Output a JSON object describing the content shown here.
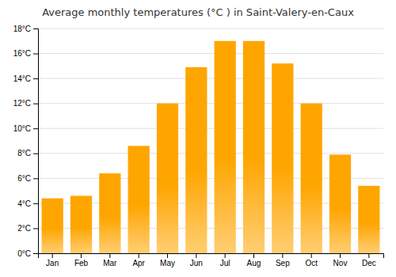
{
  "chart_data": {
    "type": "bar",
    "title": "Average monthly temperatures (°C ) in Saint-Valery-en-Caux",
    "categories": [
      "Jan",
      "Feb",
      "Mar",
      "Apr",
      "May",
      "Jun",
      "Jul",
      "Aug",
      "Sep",
      "Oct",
      "Nov",
      "Dec"
    ],
    "values": [
      4.4,
      4.6,
      6.4,
      8.6,
      12.0,
      14.9,
      17.0,
      17.0,
      15.2,
      12.0,
      7.9,
      5.4
    ],
    "color": "#FFA500",
    "ylim": [
      0,
      18
    ],
    "yticks": [
      {
        "value": 0,
        "label": "0°C"
      },
      {
        "value": 2,
        "label": "2°C"
      },
      {
        "value": 4,
        "label": "4°C"
      },
      {
        "value": 6,
        "label": "6°C"
      },
      {
        "value": 8,
        "label": "8°C"
      },
      {
        "value": 10,
        "label": "10°C"
      },
      {
        "value": 12,
        "label": "12°C"
      },
      {
        "value": 14,
        "label": "14°C"
      },
      {
        "value": 16,
        "label": "16°C"
      },
      {
        "value": 18,
        "label": "18°C"
      }
    ],
    "grid": true
  }
}
